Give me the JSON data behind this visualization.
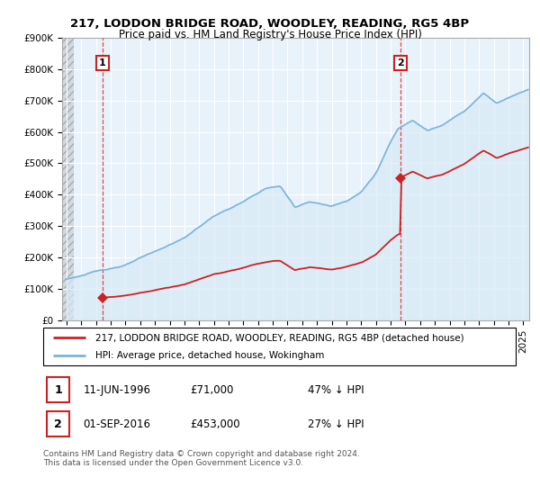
{
  "title": "217, LODDON BRIDGE ROAD, WOODLEY, READING, RG5 4BP",
  "subtitle": "Price paid vs. HM Land Registry's House Price Index (HPI)",
  "ylim": [
    0,
    900000
  ],
  "yticks": [
    0,
    100000,
    200000,
    300000,
    400000,
    500000,
    600000,
    700000,
    800000,
    900000
  ],
  "ytick_labels": [
    "£0",
    "£100K",
    "£200K",
    "£300K",
    "£400K",
    "£500K",
    "£600K",
    "£700K",
    "£800K",
    "£900K"
  ],
  "xlim_start": 1993.7,
  "xlim_end": 2025.4,
  "hpi_color": "#7ab3d9",
  "hpi_fill_color": "#d8eaf5",
  "price_color": "#cc2222",
  "sale1_date": 1996.44,
  "sale1_price": 71000,
  "sale2_date": 2016.67,
  "sale2_price": 453000,
  "legend_label1": "217, LODDON BRIDGE ROAD, WOODLEY, READING, RG5 4BP (detached house)",
  "legend_label2": "HPI: Average price, detached house, Wokingham",
  "table_row1": [
    "1",
    "11-JUN-1996",
    "£71,000",
    "47% ↓ HPI"
  ],
  "table_row2": [
    "2",
    "01-SEP-2016",
    "£453,000",
    "27% ↓ HPI"
  ],
  "footer": "Contains HM Land Registry data © Crown copyright and database right 2024.\nThis data is licensed under the Open Government Licence v3.0.",
  "vline_color": "#dd3333",
  "title_fontsize": 9.5,
  "subtitle_fontsize": 8.5,
  "tick_fontsize": 7.5,
  "annotation_box_color": "#cc2222"
}
